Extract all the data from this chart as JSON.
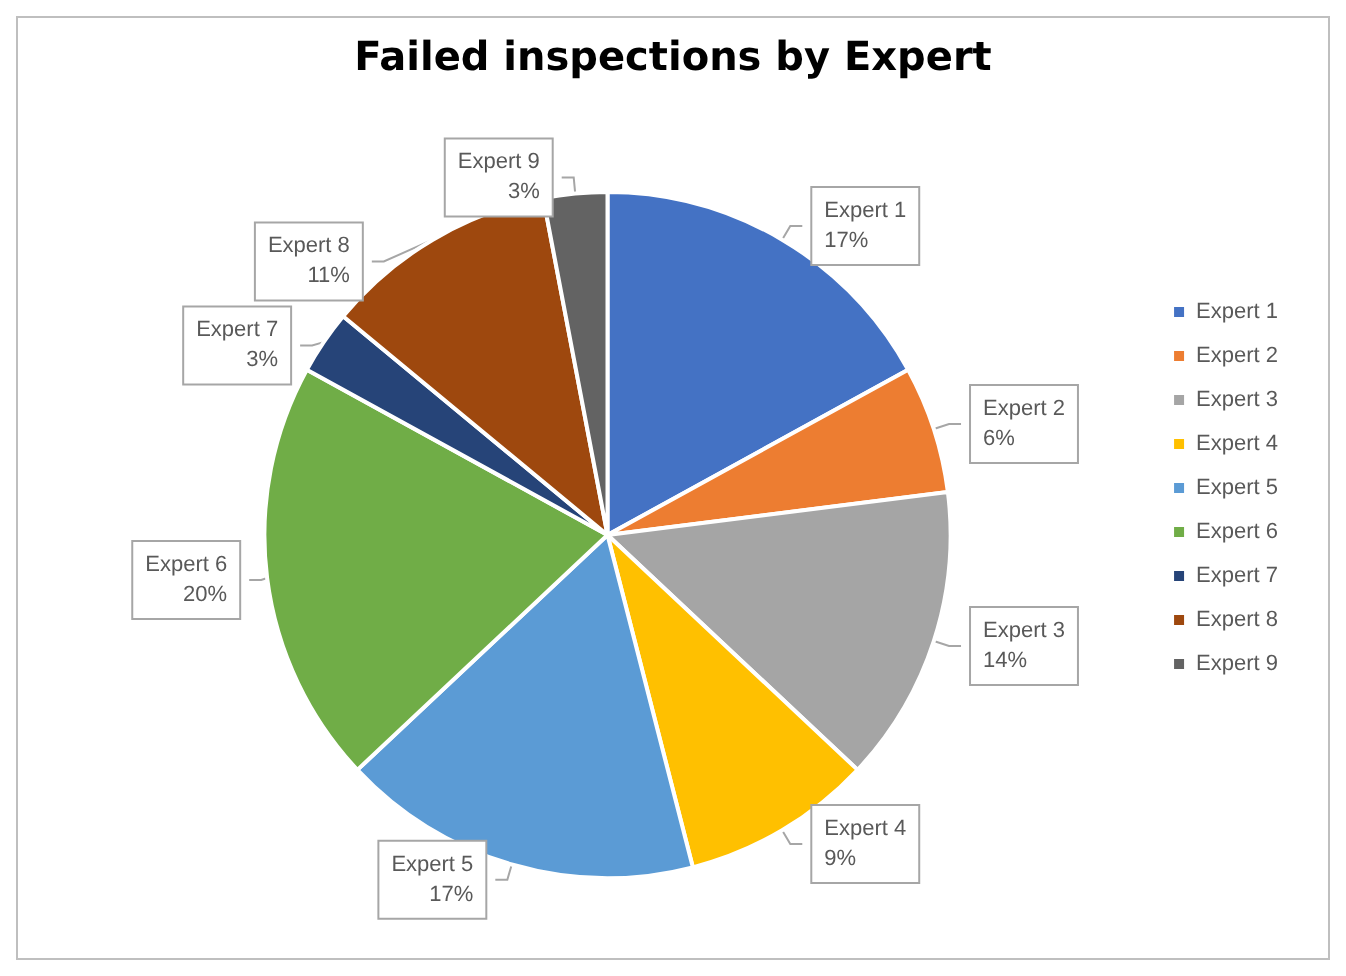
{
  "chart_data": {
    "type": "pie",
    "title": "Failed inspections by Expert",
    "categories": [
      "Expert 1",
      "Expert 2",
      "Expert 3",
      "Expert 4",
      "Expert 5",
      "Expert 6",
      "Expert 7",
      "Expert 8",
      "Expert 9"
    ],
    "values": [
      17,
      6,
      14,
      9,
      17,
      20,
      3,
      11,
      3
    ],
    "colors": [
      "#4472c4",
      "#ed7d31",
      "#a5a5a5",
      "#ffc000",
      "#5b9bd5",
      "#70ad47",
      "#264478",
      "#9e480e",
      "#636363"
    ],
    "value_labels": [
      "17%",
      "6%",
      "14%",
      "9%",
      "17%",
      "20%",
      "3%",
      "11%",
      "3%"
    ],
    "legend": "right"
  }
}
